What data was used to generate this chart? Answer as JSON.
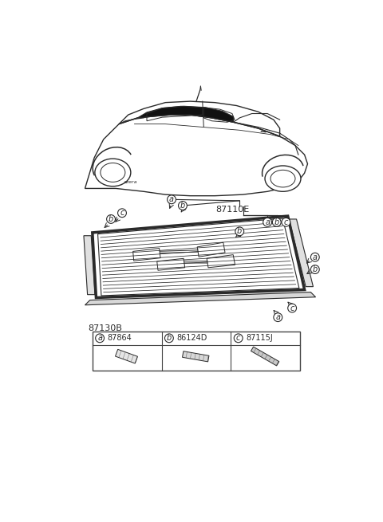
{
  "bg_color": "#ffffff",
  "part_label_87110E": "87110E",
  "part_label_87130B": "87130B",
  "part_a_number": "87864",
  "part_b_number": "86124D",
  "part_c_number": "87115J",
  "line_color": "#2a2a2a",
  "label_circle_fill": "#ffffff",
  "label_circle_edge": "#2a2a2a",
  "text_color": "#2a2a2a",
  "table_border_color": "#444444"
}
